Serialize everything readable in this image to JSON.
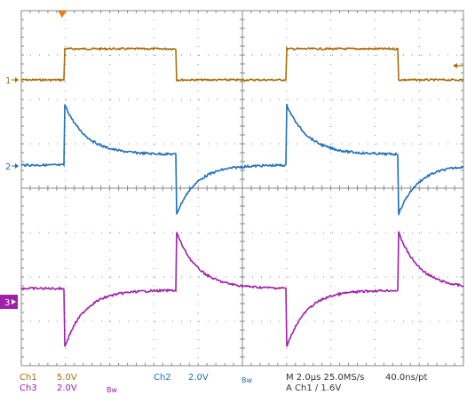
{
  "colors": {
    "ch1": "#a76e0a",
    "ch2": "#1f6fb6",
    "ch3": "#a020a8",
    "grid": "#8a8a8a",
    "trigger": "#f07a1a"
  },
  "markers": {
    "ch1": "1",
    "ch2": "2",
    "ch3": "3"
  },
  "status": {
    "row1": {
      "ch1_label": "Ch1",
      "ch1_scale": "5.0V",
      "ch2_label": "Ch2",
      "ch2_scale": "2.0V",
      "ch2_bw": "Bw",
      "timebase": "M 2.0µs 25.0MS/s",
      "resolution": "40.0ns/pt"
    },
    "row2": {
      "ch3_label": "Ch3",
      "ch3_scale": "2.0V",
      "ch3_bw": "Bw",
      "trigger_info": "A  Ch1  ∕  1.6V"
    }
  }
}
